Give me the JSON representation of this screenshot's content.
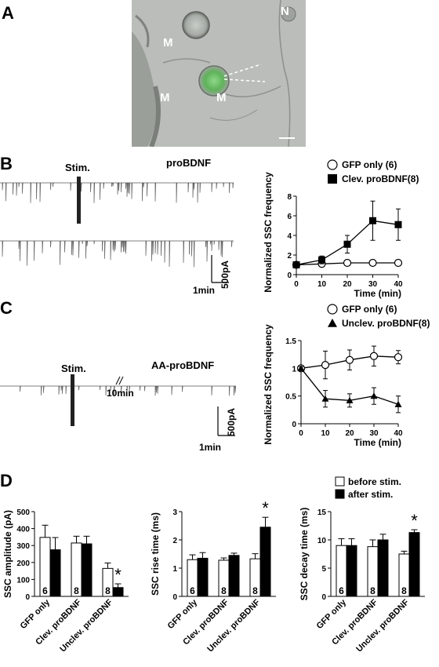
{
  "panels": {
    "a": "A",
    "b": "B",
    "c": "C",
    "d": "D"
  },
  "micrograph": {
    "labels": [
      "M",
      "N",
      "M",
      "M"
    ],
    "colors": {
      "cell_green": "#66cc66",
      "background": "#b9bdb8"
    }
  },
  "traces": {
    "b": {
      "stim": "Stim.",
      "condition": "proBDNF",
      "scale_y": "500pA",
      "scale_x": "1min"
    },
    "c": {
      "stim": "Stim.",
      "condition": "AA-proBDNF",
      "break": "10min",
      "scale_y": "500pA",
      "scale_x": "1min"
    }
  },
  "chart_data": [
    {
      "type": "line",
      "id": "B",
      "ylabel": "Normalized SSC frequency",
      "xlabel": "Time (min)",
      "x": [
        0,
        10,
        20,
        30,
        40
      ],
      "xlim": [
        0,
        40
      ],
      "ylim": [
        0,
        8
      ],
      "yticks": [
        0,
        2,
        4,
        6,
        8
      ],
      "series": [
        {
          "name": "GFP only (6)",
          "marker": "open-circle",
          "values": [
            1.0,
            1.1,
            1.2,
            1.2,
            1.2
          ],
          "errors": [
            0.1,
            0.1,
            0.1,
            0.1,
            0.1
          ]
        },
        {
          "name": "Clev. proBDNF(8)",
          "marker": "filled-square",
          "values": [
            1.0,
            1.5,
            3.1,
            5.5,
            5.1
          ],
          "errors": [
            0.3,
            0.4,
            0.9,
            2.0,
            1.6
          ]
        }
      ]
    },
    {
      "type": "line",
      "id": "C",
      "ylabel": "Normalized SSC frequency",
      "xlabel": "Time (min)",
      "x": [
        0,
        10,
        20,
        30,
        40
      ],
      "xlim": [
        0,
        40
      ],
      "ylim": [
        0,
        1.5
      ],
      "yticks": [
        0,
        0.5,
        1.0,
        1.5
      ],
      "series": [
        {
          "name": "GFP only (6)",
          "marker": "open-circle",
          "values": [
            1.0,
            1.06,
            1.15,
            1.22,
            1.2
          ],
          "errors": [
            0.03,
            0.25,
            0.18,
            0.18,
            0.12
          ]
        },
        {
          "name": "Unclev. proBDNF(8)",
          "marker": "filled-triangle",
          "values": [
            1.0,
            0.45,
            0.42,
            0.5,
            0.35
          ],
          "errors": [
            0.03,
            0.15,
            0.12,
            0.15,
            0.15
          ]
        }
      ]
    },
    {
      "type": "bar",
      "id": "D1",
      "ylabel": "SSC amplitude (pA)",
      "categories": [
        "GFP only",
        "Clev. proBDNF",
        "Unclev. proBDNF"
      ],
      "ylim": [
        0,
        500
      ],
      "yticks": [
        0,
        100,
        200,
        300,
        400,
        500
      ],
      "series": [
        {
          "name": "before stim.",
          "values": [
            348,
            315,
            165
          ],
          "errors": [
            72,
            40,
            32
          ]
        },
        {
          "name": "after stim.",
          "values": [
            275,
            310,
            52
          ],
          "errors": [
            72,
            45,
            22
          ]
        }
      ],
      "n_labels": [
        "6",
        "8",
        "8"
      ],
      "significance": {
        "category": 2,
        "label": "*"
      }
    },
    {
      "type": "bar",
      "id": "D2",
      "ylabel": "SSC rise time (ms)",
      "categories": [
        "GFP only",
        "Clev. proBDNF",
        "Unclev. proBDNF"
      ],
      "ylim": [
        0,
        3
      ],
      "yticks": [
        0,
        1,
        2,
        3
      ],
      "series": [
        {
          "name": "before stim.",
          "values": [
            1.3,
            1.28,
            1.33
          ],
          "errors": [
            0.17,
            0.08,
            0.18
          ]
        },
        {
          "name": "after stim.",
          "values": [
            1.35,
            1.45,
            2.45
          ],
          "errors": [
            0.2,
            0.08,
            0.35
          ]
        }
      ],
      "n_labels": [
        "6",
        "8",
        "8"
      ],
      "significance": {
        "category": 2,
        "label": "*"
      }
    },
    {
      "type": "bar",
      "id": "D3",
      "ylabel": "SSC decay time (ms)",
      "categories": [
        "GFP only",
        "Clev. proBDNF",
        "Unclev. proBDNF"
      ],
      "ylim": [
        0,
        15
      ],
      "yticks": [
        0,
        5,
        10,
        15
      ],
      "series": [
        {
          "name": "before stim.",
          "values": [
            9.0,
            8.8,
            7.5
          ],
          "errors": [
            1.2,
            1.2,
            0.5
          ]
        },
        {
          "name": "after stim.",
          "values": [
            9.0,
            10.0,
            11.3
          ],
          "errors": [
            1.2,
            1.0,
            0.5
          ]
        }
      ],
      "n_labels": [
        "6",
        "8",
        "8"
      ],
      "significance": {
        "category": 2,
        "label": "*"
      },
      "legend": [
        "before stim.",
        "after stim."
      ]
    }
  ]
}
